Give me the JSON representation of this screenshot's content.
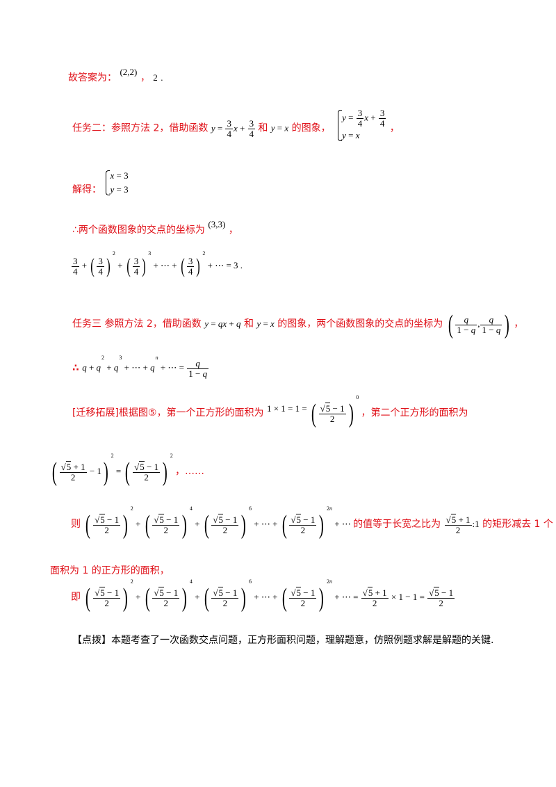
{
  "lines": {
    "l1_text": "故答案为：",
    "l1_math_a": "(2,2)",
    "l1_sep": "，",
    "l1_math_b": "2",
    "l1_end": ".",
    "l2_text_a": "任务二：参照方法 2，借助函数",
    "l2_text_b": "和",
    "l2_text_c": "的图象，",
    "l2_end": "，",
    "l3_text": "解得：",
    "l4_text": "∴两个函数图象的交点的坐标为",
    "l4_math": "(3,3)",
    "l4_end": "，",
    "l5_end": ".",
    "l6_text_a": "任务三  参照方法 2，借助函数",
    "l6_text_b": "和",
    "l6_text_c": "的图象，两个函数图象的交点的坐标为",
    "l6_end": "，",
    "l7_text": "∴",
    "l8_text_a": "[迁移拓展]根据图⑤，第一个正方形的面积为",
    "l8_text_b": "，第二个正方形的面积为",
    "l9_end": "，……",
    "l10_text_a": "则",
    "l10_text_b": "的值等于长宽之比为",
    "l10_text_c": "的矩形减去 1 个",
    "l11_text": "面积为 1 的正方形的面积，",
    "l12_text": "即",
    "l13_text": "【点拨】本题考查了一次函数交点问题，正方形面积问题，理解题意，仿照例题求解是解题的关键."
  }
}
